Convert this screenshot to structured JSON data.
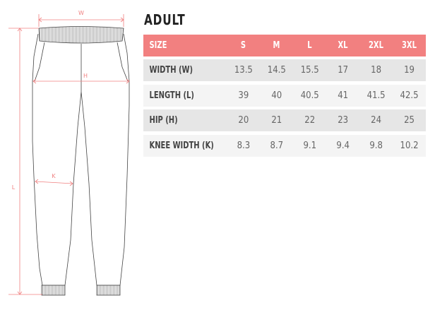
{
  "title": "ADULT",
  "diagram": {
    "labels": {
      "w": "W",
      "h": "H",
      "k": "K",
      "l": "L"
    },
    "accent": "#f08080"
  },
  "table": {
    "header": {
      "label": "SIZE",
      "sizes": [
        "S",
        "M",
        "L",
        "XL",
        "2XL",
        "3XL"
      ]
    },
    "rows": [
      {
        "label": "WIDTH (W)",
        "values": [
          "13.5",
          "14.5",
          "15.5",
          "17",
          "18",
          "19"
        ]
      },
      {
        "label": "LENGTH (L)",
        "values": [
          "39",
          "40",
          "40.5",
          "41",
          "41.5",
          "42.5"
        ]
      },
      {
        "label": "HIP (H)",
        "values": [
          "20",
          "21",
          "22",
          "23",
          "24",
          "25"
        ]
      },
      {
        "label": "KNEE WIDTH (K)",
        "values": [
          "8.3",
          "8.7",
          "9.1",
          "9.4",
          "9.8",
          "10.2"
        ]
      }
    ],
    "header_color": "#f28080"
  }
}
